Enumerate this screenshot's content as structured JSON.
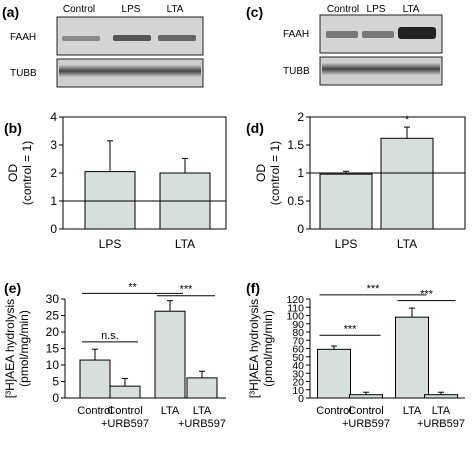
{
  "panels": {
    "a": "(a)",
    "b": "(b)",
    "c": "(c)",
    "d": "(d)",
    "e": "(e)",
    "f": "(f)"
  },
  "blots": {
    "a": {
      "lanes": [
        "Control",
        "LPS",
        "LTA"
      ],
      "rows": [
        "FAAH",
        "TUBB"
      ]
    },
    "c": {
      "lanes": [
        "Control",
        "LPS",
        "LTA"
      ],
      "rows": [
        "FAAH",
        "TUBB"
      ]
    }
  },
  "chart_data": [
    {
      "id": "b",
      "type": "bar",
      "categories": [
        "LPS",
        "LTA"
      ],
      "values": [
        2.05,
        2.0
      ],
      "errors": [
        1.1,
        0.52
      ],
      "ylabel": [
        "OD",
        "(control = 1)"
      ],
      "ylim": [
        0,
        4
      ],
      "yticks": [
        "0",
        "1",
        "2",
        "3",
        "4"
      ],
      "reference": 1,
      "significance": []
    },
    {
      "id": "d",
      "type": "bar",
      "categories": [
        "LPS",
        "LTA"
      ],
      "values": [
        0.98,
        1.62
      ],
      "errors": [
        0.05,
        0.2
      ],
      "ylabel": [
        "OD",
        "(control = 1)"
      ],
      "ylim": [
        0,
        2
      ],
      "yticks": [
        "0",
        "0.5",
        "1",
        "1.5",
        "2"
      ],
      "reference": 1,
      "significance": [
        {
          "bar": 1,
          "label": "*"
        }
      ]
    },
    {
      "id": "e",
      "type": "bar",
      "categories": [
        [
          "Control",
          ""
        ],
        [
          "Control",
          "+URB597"
        ],
        [
          "LTA",
          ""
        ],
        [
          "LTA",
          "+URB597"
        ]
      ],
      "values": [
        11.5,
        3.6,
        26.3,
        6.1
      ],
      "errors": [
        3.3,
        2.3,
        3.2,
        2.0
      ],
      "ylabel": [
        "[³H]AEA hydrolysis",
        "(pmol/mg/min)"
      ],
      "ylim": [
        0,
        30
      ],
      "yticks": [
        "0",
        "5",
        "10",
        "15",
        "20",
        "25",
        "30"
      ],
      "significance": [
        {
          "from": 0,
          "to": 1,
          "label": "n.s.",
          "y": 17
        },
        {
          "from": 0,
          "to": 2,
          "label": "**",
          "y": 31.7
        },
        {
          "from": 2,
          "to": 3,
          "label": "***",
          "y": 31.0
        }
      ]
    },
    {
      "id": "f",
      "type": "bar",
      "categories": [
        [
          "Control",
          ""
        ],
        [
          "Control",
          "+URB597"
        ],
        [
          "LTA",
          ""
        ],
        [
          "LTA",
          "+URB597"
        ]
      ],
      "values": [
        59,
        4,
        98,
        4
      ],
      "errors": [
        4,
        3,
        11,
        3
      ],
      "ylabel": [
        "[³H]AEA hydrolysis",
        "(pmol/mg/min)"
      ],
      "ylim": [
        0,
        120
      ],
      "yticks": [
        "0",
        "10",
        "20",
        "30",
        "40",
        "50",
        "60",
        "70",
        "80",
        "90",
        "100",
        "110",
        "120"
      ],
      "significance": [
        {
          "from": 0,
          "to": 1,
          "label": "***",
          "y": 76
        },
        {
          "from": 0,
          "to": 2,
          "label": "***",
          "y": 125
        },
        {
          "from": 2,
          "to": 3,
          "label": "***",
          "y": 118
        }
      ]
    }
  ]
}
